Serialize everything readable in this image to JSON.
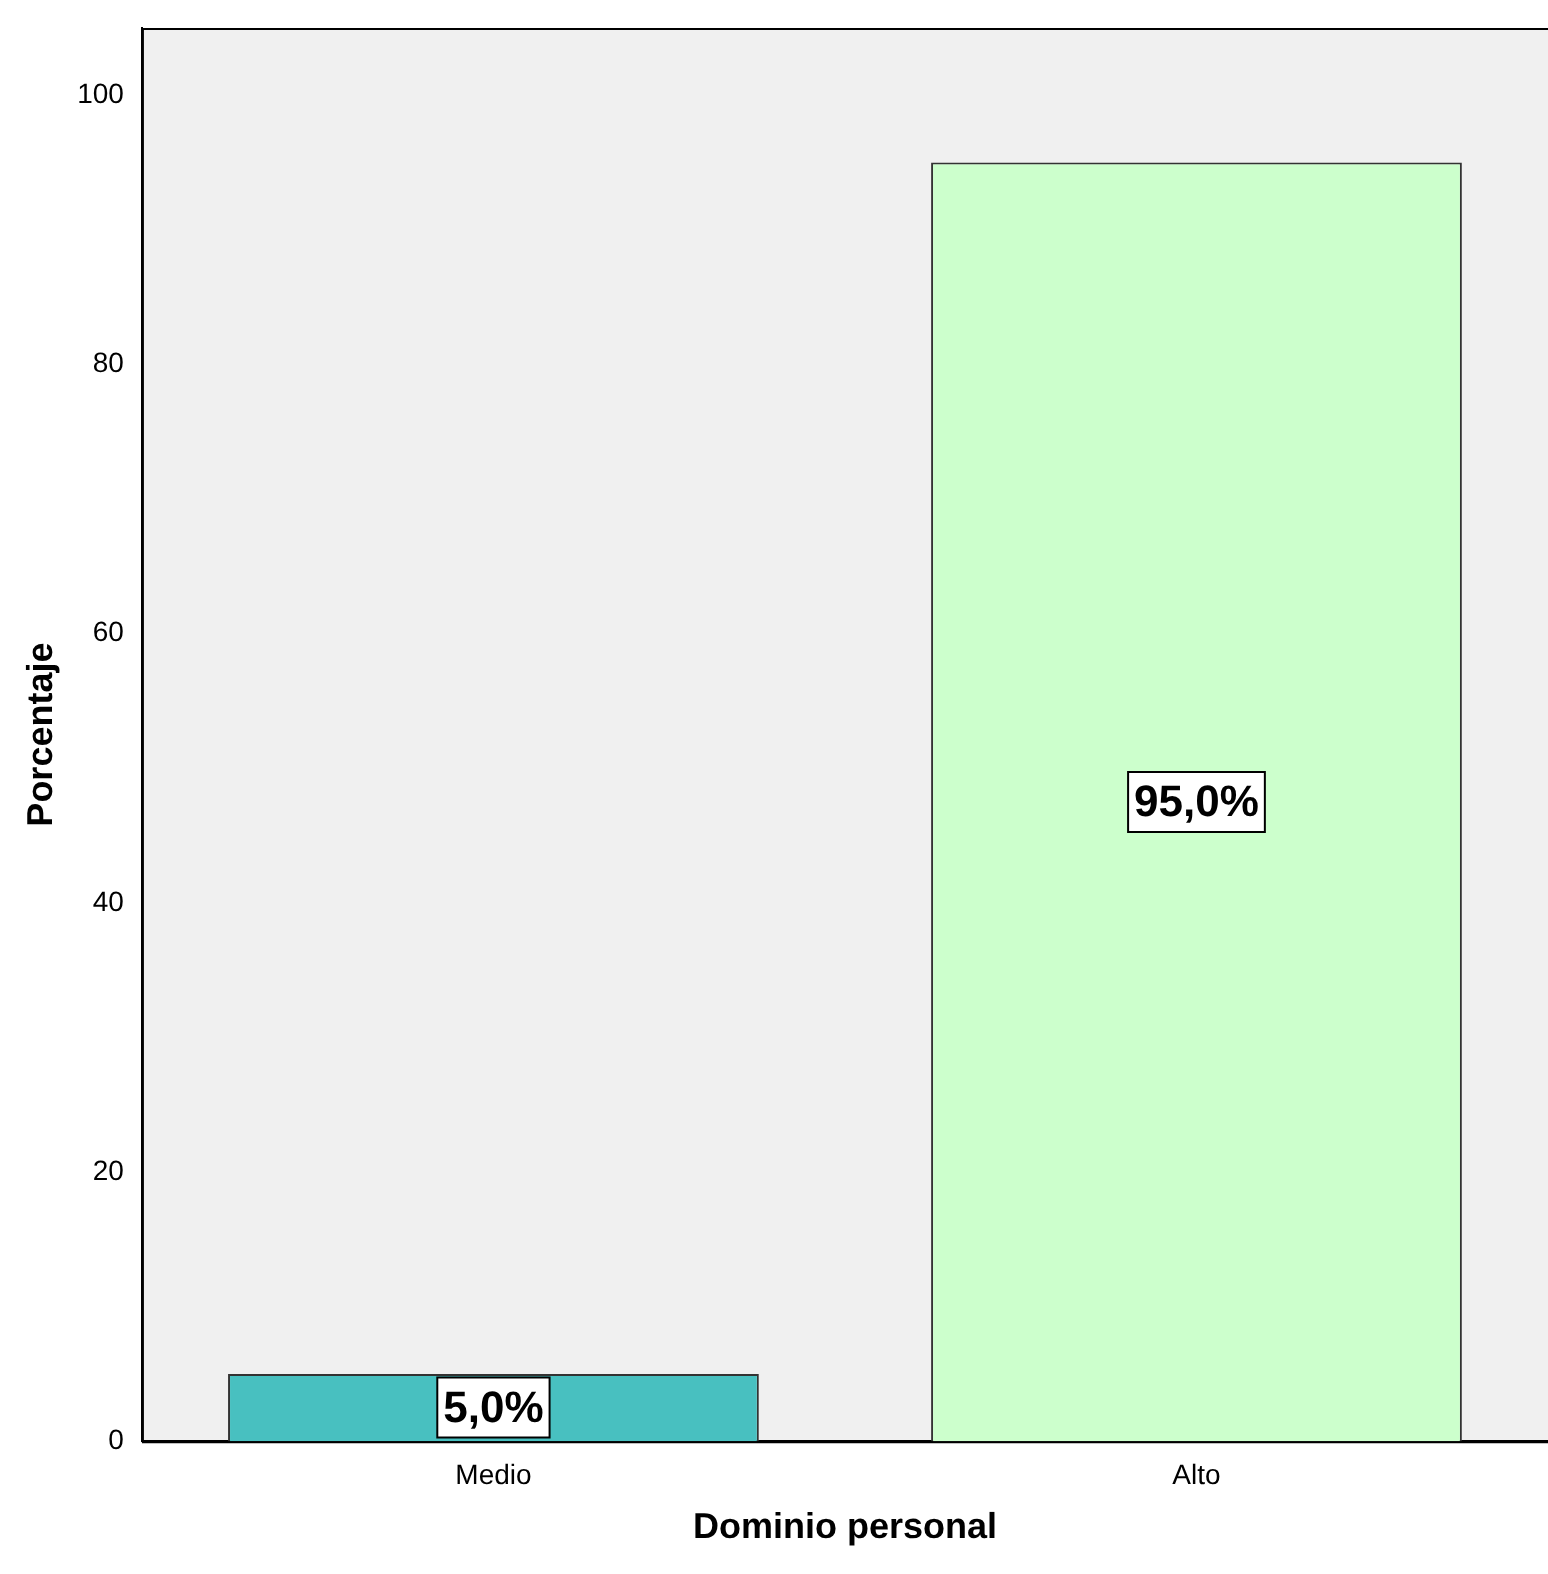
{
  "chart_data": {
    "type": "bar",
    "xlabel": "Dominio personal",
    "ylabel": "Porcentaje",
    "categories": [
      "Medio",
      "Alto"
    ],
    "values": [
      5.0,
      95.0
    ],
    "colors": [
      "#48c0c0",
      "#ccffcc"
    ],
    "value_labels": [
      "5,0%",
      "95,0%"
    ],
    "ylim": [
      0,
      105
    ],
    "yticks": [
      0,
      20,
      40,
      60,
      80,
      100
    ],
    "grid": false,
    "legend": false
  }
}
